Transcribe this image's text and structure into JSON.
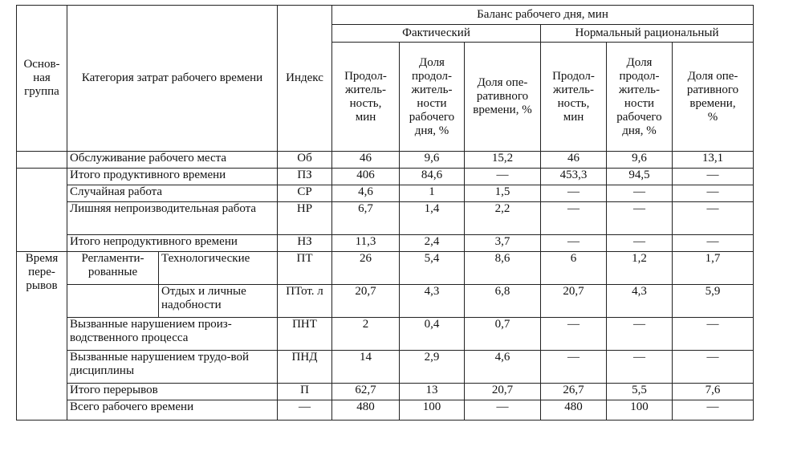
{
  "header": {
    "group": "Основ-\nная\nгруппа",
    "category": "Категория затрат рабочего времени",
    "index": "Индекс",
    "balance": "Баланс рабочего дня, мин",
    "actual": "Фактический",
    "normal": "Нормальный рациональный",
    "sub": [
      "Продол-\nжитель-\nность,\nмин",
      "Доля\nпродол-\nжитель-\nности\nрабочего\nдня, %",
      "Доля опе-\nративного\nвремени, %",
      "Продол-\nжитель-\nность,\nмин",
      "Доля\nпродол-\nжитель-\nности\nрабочего\nдня, %",
      "Доля опе-\nративного\nвремени,\n%"
    ]
  },
  "groups": {
    "breaks": "Время\nпере-\nрывов",
    "regulated": "Регламенти-\nрованные"
  },
  "rows": [
    {
      "category": "Обслуживание рабочего места",
      "index": "Об",
      "values": [
        "46",
        "9,6",
        "15,2",
        "46",
        "9,6",
        "13,1"
      ]
    },
    {
      "category": "Итого продуктивного времени",
      "index": "ПЗ",
      "values": [
        "406",
        "84,6",
        "—",
        "453,3",
        "94,5",
        "—"
      ]
    },
    {
      "category": "Случайная работа",
      "index": "СР",
      "values": [
        "4,6",
        "1",
        "1,5",
        "—",
        "—",
        "—"
      ]
    },
    {
      "category": "Лишняя непроизводительная работа",
      "index": "НР",
      "values": [
        "6,7",
        "1,4",
        "2,2",
        "—",
        "—",
        "—"
      ]
    },
    {
      "category": "Итого непродуктивного времени",
      "index": "НЗ",
      "values": [
        "11,3",
        "2,4",
        "3,7",
        "—",
        "—",
        "—"
      ]
    },
    {
      "category": "Технологические",
      "index": "ПТ",
      "values": [
        "26",
        "5,4",
        "8,6",
        "6",
        "1,2",
        "1,7"
      ]
    },
    {
      "category": "Отдых и личные надобности",
      "index": "ПТот. л",
      "values": [
        "20,7",
        "4,3",
        "6,8",
        "20,7",
        "4,3",
        "5,9"
      ]
    },
    {
      "category": "Вызванные нарушением произ-водственного процесса",
      "index": "ПНТ",
      "values": [
        "2",
        "0,4",
        "0,7",
        "—",
        "—",
        "—"
      ]
    },
    {
      "category": "Вызванные нарушением трудо-вой дисциплины",
      "index": "ПНД",
      "values": [
        "14",
        "2,9",
        "4,6",
        "—",
        "—",
        "—"
      ]
    },
    {
      "category": "Итого перерывов",
      "index": "П",
      "values": [
        "62,7",
        "13",
        "20,7",
        "26,7",
        "5,5",
        "7,6"
      ]
    },
    {
      "category": "Всего рабочего времени",
      "index": "—",
      "values": [
        "480",
        "100",
        "—",
        "480",
        "100",
        "—"
      ]
    }
  ]
}
